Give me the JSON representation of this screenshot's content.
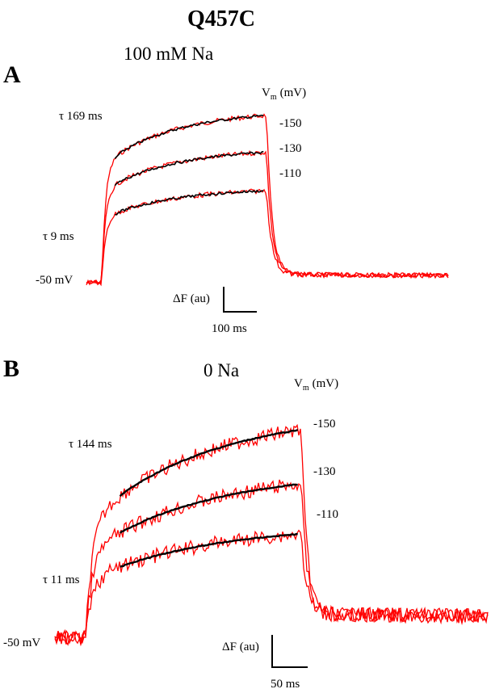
{
  "figure": {
    "title": "Q457C"
  },
  "chart_data": [
    {
      "type": "line",
      "panel": "A",
      "condition": "100 mM Na",
      "vm_header": {
        "symbol": "V",
        "subscript": "m",
        "unit": "(mV)"
      },
      "holding_label": "-50 mV",
      "tau_fast_label": "τ 9 ms",
      "tau_slow_label": "τ 169 ms",
      "scale_bar": {
        "y_label": "ΔF (au)",
        "x_label": "100 ms"
      },
      "duration_ms": 500,
      "series": [
        {
          "name": "-150",
          "level": 1.0,
          "fit_color": "#000000",
          "trace_color": "#ff0000"
        },
        {
          "name": "-130",
          "level": 0.78,
          "fit_color": "#000000",
          "trace_color": "#ff0000"
        },
        {
          "name": "-110",
          "level": 0.55,
          "fit_color": "#000000",
          "trace_color": "#ff0000"
        }
      ]
    },
    {
      "type": "line",
      "panel": "B",
      "condition": "0 Na",
      "vm_header": {
        "symbol": "V",
        "subscript": "m",
        "unit": "(mV)"
      },
      "holding_label": "-50 mV",
      "tau_fast_label": "τ 11 ms",
      "tau_slow_label": "τ 144 ms",
      "scale_bar": {
        "y_label": "ΔF (au)",
        "x_label": "50 ms"
      },
      "duration_ms": 250,
      "series": [
        {
          "name": "-150",
          "level": 1.0,
          "fit_color": "#000000",
          "trace_color": "#ff0000"
        },
        {
          "name": "-130",
          "level": 0.74,
          "fit_color": "#000000",
          "trace_color": "#ff0000"
        },
        {
          "name": "-110",
          "level": 0.5,
          "fit_color": "#000000",
          "trace_color": "#ff0000"
        }
      ]
    }
  ]
}
